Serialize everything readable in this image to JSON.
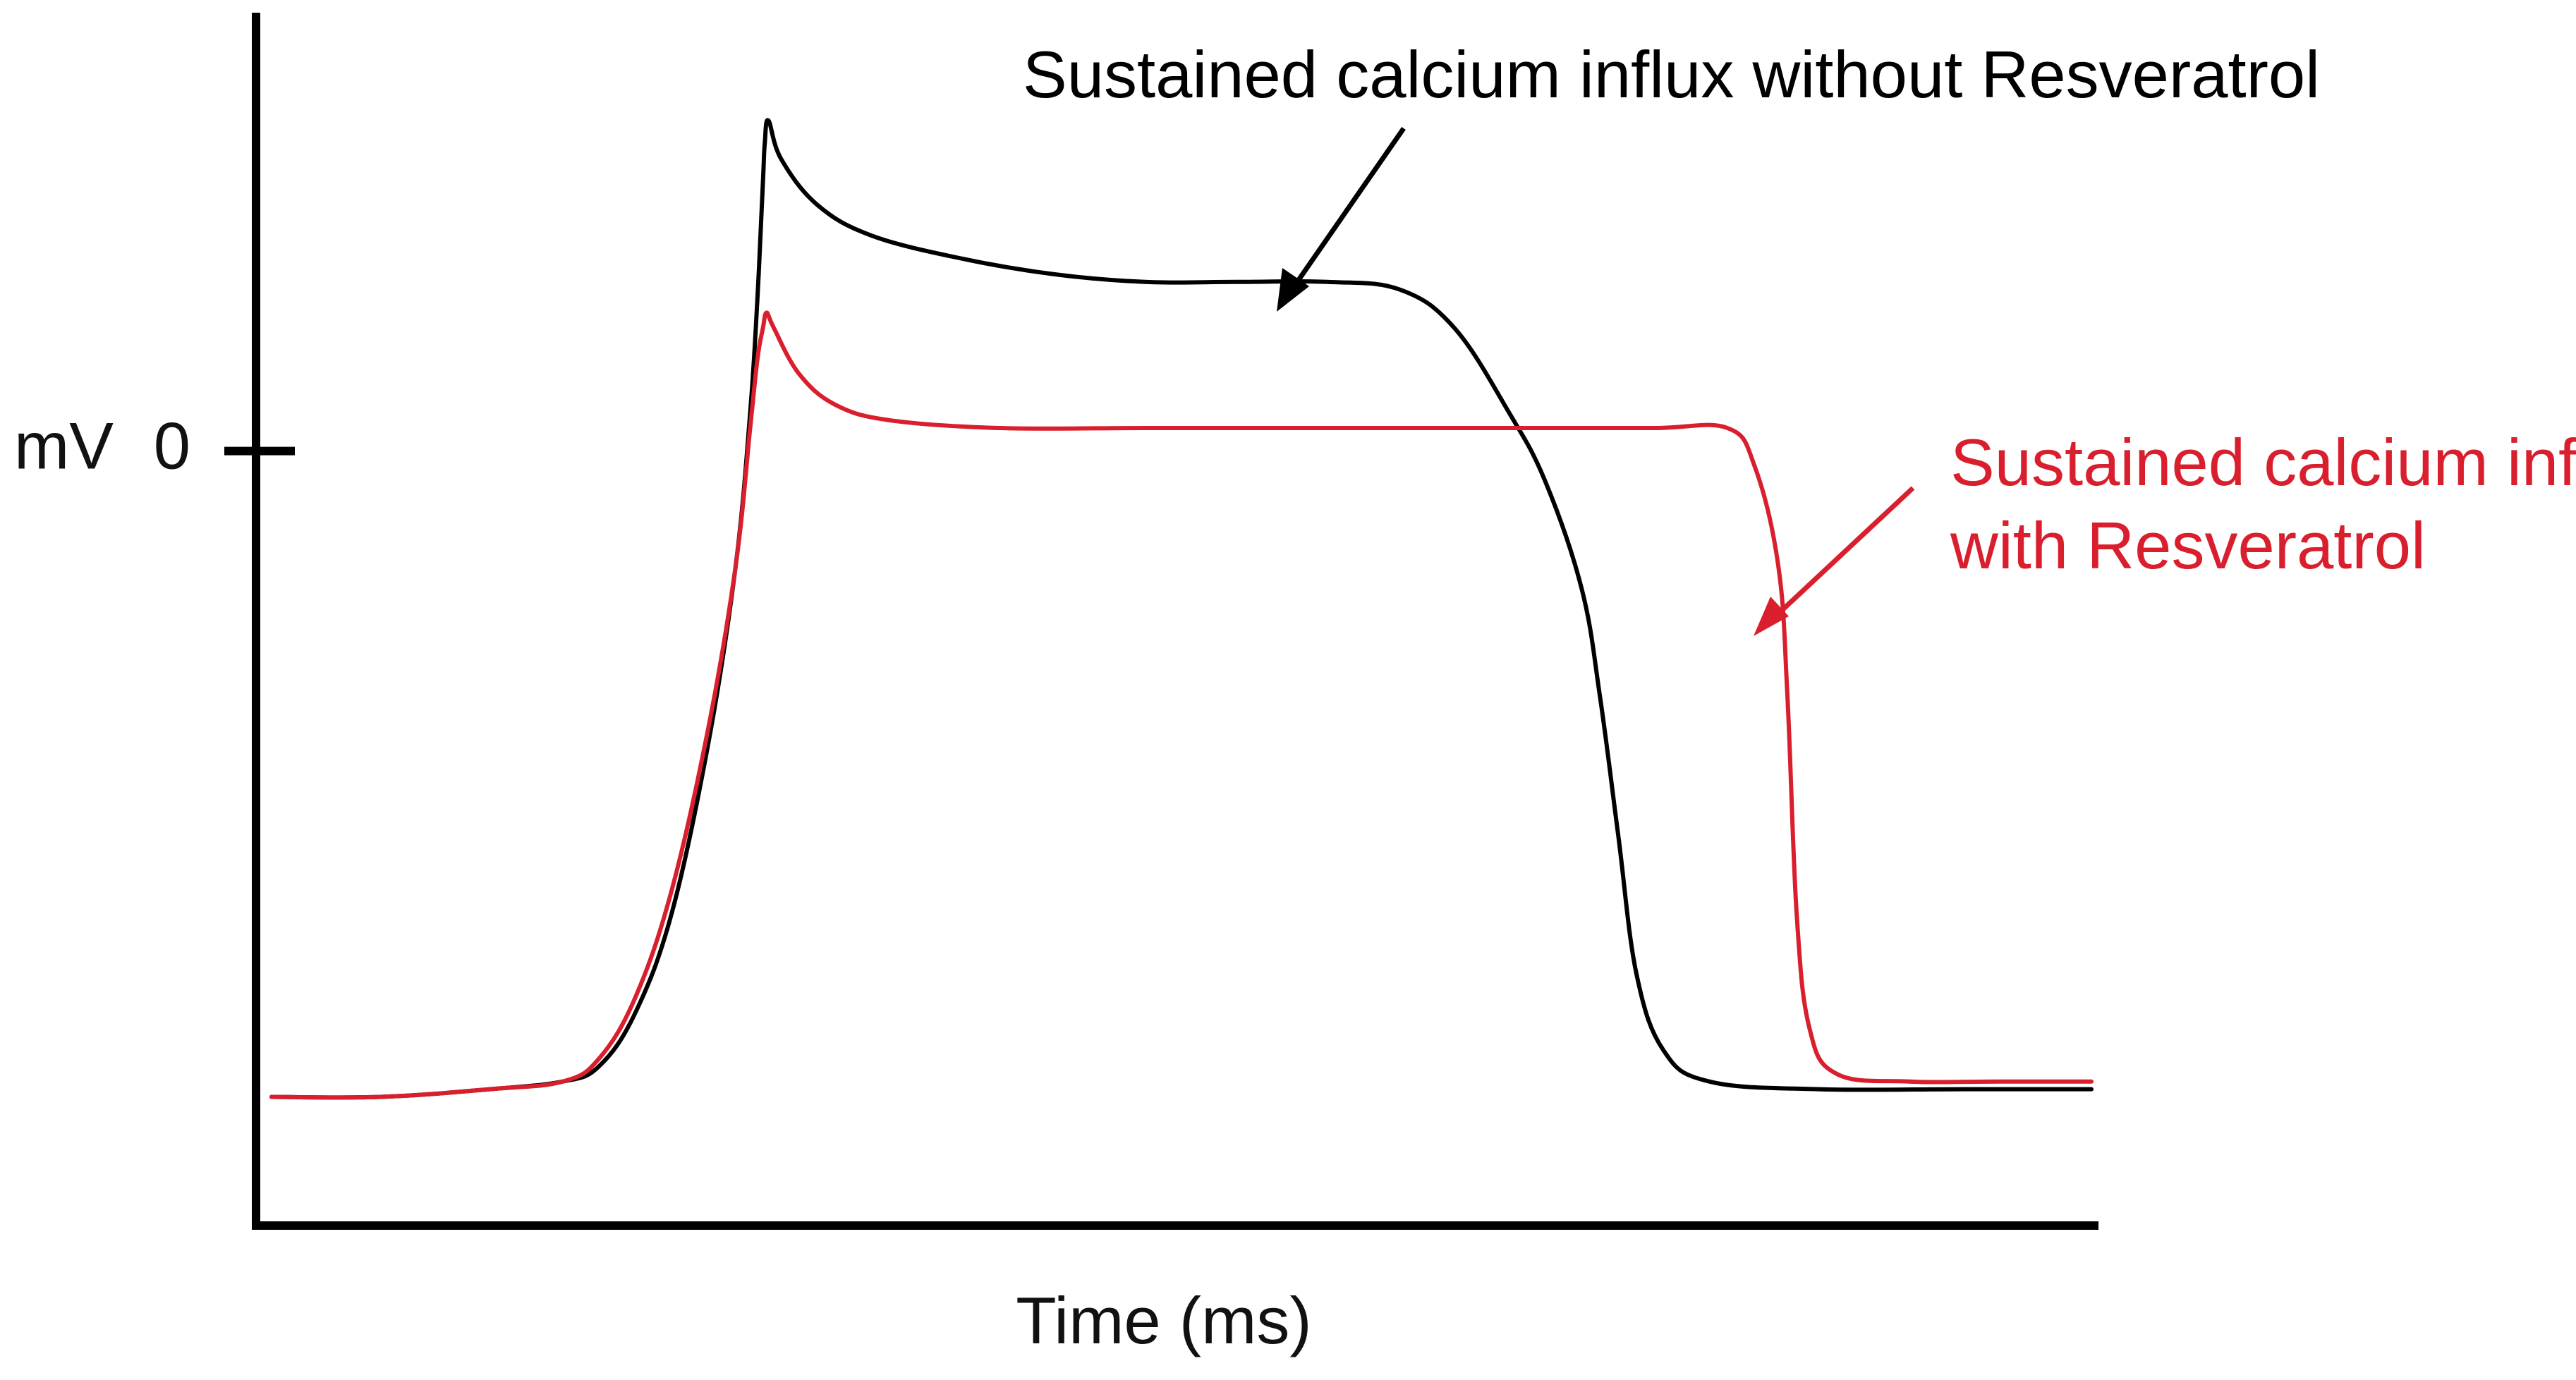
{
  "chart_data": {
    "type": "line",
    "title": "",
    "xlabel": "Time (ms)",
    "ylabel": "mV",
    "y_ticks": [
      {
        "value": 0,
        "label": "0"
      }
    ],
    "xlim": [
      0,
      1000
    ],
    "ylim": [
      -100,
      55
    ],
    "grid": false,
    "legend": "none",
    "series": [
      {
        "name": "Sustained calcium influx without Resverattol",
        "color": "#000000",
        "points": [
          [
            0,
            -84
          ],
          [
            60,
            -84
          ],
          [
            120,
            -83
          ],
          [
            160,
            -82
          ],
          [
            180,
            -80
          ],
          [
            200,
            -73
          ],
          [
            220,
            -60
          ],
          [
            240,
            -38
          ],
          [
            255,
            -15
          ],
          [
            263,
            5
          ],
          [
            267,
            20
          ],
          [
            270,
            35
          ],
          [
            271,
            40
          ],
          [
            273,
            43
          ],
          [
            280,
            38
          ],
          [
            300,
            32
          ],
          [
            330,
            28
          ],
          [
            380,
            25
          ],
          [
            430,
            23
          ],
          [
            480,
            22
          ],
          [
            530,
            22
          ],
          [
            580,
            22
          ],
          [
            620,
            21
          ],
          [
            650,
            16
          ],
          [
            680,
            5
          ],
          [
            700,
            -4
          ],
          [
            720,
            -18
          ],
          [
            730,
            -32
          ],
          [
            740,
            -50
          ],
          [
            750,
            -68
          ],
          [
            765,
            -78
          ],
          [
            790,
            -82
          ],
          [
            850,
            -83
          ],
          [
            930,
            -83
          ],
          [
            1000,
            -83
          ]
        ]
      },
      {
        "name": "Sustained calcium influx with Resverattol",
        "color": "#d91f2e",
        "points": [
          [
            0,
            -84
          ],
          [
            60,
            -84
          ],
          [
            120,
            -83
          ],
          [
            160,
            -82
          ],
          [
            180,
            -79
          ],
          [
            200,
            -71
          ],
          [
            220,
            -57
          ],
          [
            240,
            -36
          ],
          [
            255,
            -15
          ],
          [
            263,
            3
          ],
          [
            267,
            12
          ],
          [
            270,
            16
          ],
          [
            272,
            18
          ],
          [
            276,
            16
          ],
          [
            290,
            10
          ],
          [
            310,
            6
          ],
          [
            340,
            4
          ],
          [
            400,
            3
          ],
          [
            480,
            3
          ],
          [
            550,
            3
          ],
          [
            620,
            3
          ],
          [
            700,
            3
          ],
          [
            760,
            3
          ],
          [
            800,
            3
          ],
          [
            815,
            -2
          ],
          [
            828,
            -15
          ],
          [
            833,
            -32
          ],
          [
            838,
            -60
          ],
          [
            845,
            -75
          ],
          [
            860,
            -81
          ],
          [
            900,
            -82
          ],
          [
            950,
            -82
          ],
          [
            1000,
            -82
          ]
        ]
      }
    ],
    "annotations": [
      {
        "lines": [
          "Sustained calcium influx without Resveratrol"
        ],
        "color": "#000000"
      },
      {
        "lines": [
          "Sustained calcium influx",
          "with Resveratrol"
        ],
        "color": "#d91f2e"
      }
    ]
  }
}
